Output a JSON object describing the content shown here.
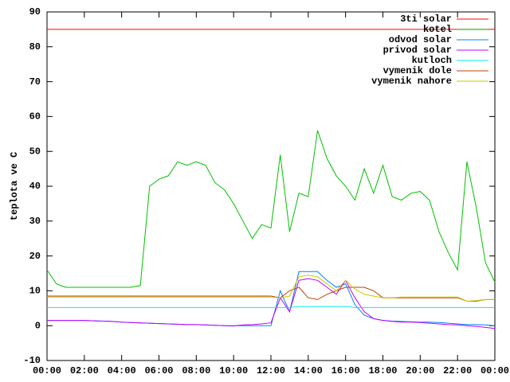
{
  "chart_data": {
    "type": "line",
    "y_label": "teplota ve C",
    "x": [
      0,
      0.5,
      1,
      1.5,
      2,
      2.5,
      3,
      3.5,
      4,
      4.5,
      5,
      5.5,
      6,
      6.5,
      7,
      7.5,
      8,
      8.5,
      9,
      9.5,
      10,
      10.5,
      11,
      11.5,
      12,
      12.5,
      13,
      13.5,
      14,
      14.5,
      15,
      15.5,
      16,
      16.5,
      17,
      17.5,
      18,
      18.5,
      19,
      19.5,
      20,
      20.5,
      21,
      21.5,
      22,
      22.5,
      23,
      23.5,
      24
    ],
    "xlim": [
      0,
      24
    ],
    "xticks": [
      {
        "value": 0,
        "label": "00:00"
      },
      {
        "value": 2,
        "label": "02:00"
      },
      {
        "value": 4,
        "label": "04:00"
      },
      {
        "value": 6,
        "label": "06:00"
      },
      {
        "value": 8,
        "label": "08:00"
      },
      {
        "value": 10,
        "label": "10:00"
      },
      {
        "value": 12,
        "label": "12:00"
      },
      {
        "value": 14,
        "label": "14:00"
      },
      {
        "value": 16,
        "label": "16:00"
      },
      {
        "value": 18,
        "label": "18:00"
      },
      {
        "value": 20,
        "label": "20:00"
      },
      {
        "value": 22,
        "label": "22:00"
      },
      {
        "value": 24,
        "label": "00:00"
      }
    ],
    "ylim": [
      -10,
      90
    ],
    "yticks": [
      -10,
      0,
      10,
      20,
      30,
      40,
      50,
      60,
      70,
      80,
      90
    ],
    "legend": "top-right",
    "series": [
      {
        "name": "3ti solar",
        "color": "#ff0000",
        "values": [
          85,
          85,
          85,
          85,
          85,
          85,
          85,
          85,
          85,
          85,
          85,
          85,
          85,
          85,
          85,
          85,
          85,
          85,
          85,
          85,
          85,
          85,
          85,
          85,
          85,
          85,
          85,
          85,
          85,
          85,
          85,
          85,
          85,
          85,
          85,
          85,
          85,
          85,
          85,
          85,
          85,
          85,
          85,
          85,
          85,
          85,
          85,
          85,
          85
        ]
      },
      {
        "name": "kotel",
        "color": "#00c000",
        "values": [
          16,
          12,
          11,
          11,
          11,
          11,
          11,
          11,
          11,
          11,
          11.5,
          40,
          42,
          43,
          47,
          46,
          47,
          46,
          41,
          39,
          35,
          30,
          25,
          29,
          28,
          49,
          27,
          38,
          37,
          56,
          48,
          43,
          40,
          36,
          45,
          38,
          46,
          37,
          36,
          38,
          38.5,
          36,
          27,
          21,
          16,
          47,
          34,
          18,
          12.5
        ]
      },
      {
        "name": "odvod solar",
        "color": "#0080ff",
        "values": [
          1.5,
          1.5,
          1.5,
          1.5,
          1.5,
          1.4,
          1.3,
          1.2,
          1.0,
          0.9,
          0.8,
          0.7,
          0.6,
          0.5,
          0.4,
          0.3,
          0.3,
          0.2,
          0.1,
          0,
          0,
          0,
          0,
          0,
          0,
          10,
          4,
          15.5,
          15.5,
          15.5,
          13,
          11,
          12,
          6,
          3,
          2,
          1.5,
          1.3,
          1.2,
          1.1,
          1,
          1,
          0.9,
          0.7,
          0.5,
          0.3,
          0.3,
          0.2,
          0
        ]
      },
      {
        "name": "privod solar",
        "color": "#c000ff",
        "values": [
          1.5,
          1.5,
          1.5,
          1.5,
          1.5,
          1.4,
          1.3,
          1.2,
          1.0,
          0.9,
          0.8,
          0.7,
          0.6,
          0.5,
          0.4,
          0.3,
          0.3,
          0.2,
          0.1,
          0,
          -0.1,
          0.2,
          0.3,
          0.5,
          0.8,
          8,
          4,
          13,
          13.5,
          13,
          11,
          9,
          13,
          8,
          4,
          2,
          1.5,
          1.2,
          1,
          1,
          0.9,
          0.7,
          0.5,
          0.3,
          0.2,
          0,
          -0.2,
          -0.5,
          -0.8
        ]
      },
      {
        "name": "kutloch",
        "color": "#00eeee",
        "values": [
          5.2,
          5.2,
          5.2,
          5.2,
          5.2,
          5.2,
          5.2,
          5.2,
          5.2,
          5.2,
          5.2,
          5.2,
          5.2,
          5.2,
          5.2,
          5.2,
          5.2,
          5.2,
          5.2,
          5.2,
          5.2,
          5.2,
          5.2,
          5.2,
          5.2,
          5.2,
          5.2,
          5.5,
          5.5,
          5.5,
          5.5,
          5.5,
          5.5,
          5.2,
          5.2,
          5.2,
          5.2,
          5.2,
          5.2,
          5.2,
          5.2,
          5.2,
          5.2,
          5.2,
          5.2,
          5.2,
          5.2,
          5.2,
          5.2
        ]
      },
      {
        "name": "vymenik dole",
        "color": "#c04000",
        "values": [
          8.5,
          8.5,
          8.5,
          8.5,
          8.5,
          8.5,
          8.5,
          8.5,
          8.5,
          8.5,
          8.5,
          8.5,
          8.5,
          8.5,
          8.5,
          8.5,
          8.5,
          8.5,
          8.5,
          8.5,
          8.5,
          8.5,
          8.5,
          8.5,
          8.5,
          8,
          10,
          11,
          8,
          7.5,
          9,
          10,
          11,
          11,
          11,
          10,
          8,
          8,
          8,
          8,
          8,
          8,
          8,
          8,
          8,
          7,
          7,
          7.5,
          7.5
        ]
      },
      {
        "name": "vymenik nahore",
        "color": "#c8c800",
        "values": [
          8.2,
          8.2,
          8.2,
          8.2,
          8.2,
          8.2,
          8.2,
          8.2,
          8.2,
          8.2,
          8.2,
          8.2,
          8.2,
          8.2,
          8.2,
          8.2,
          8.2,
          8.2,
          8.2,
          8.2,
          8.2,
          8.2,
          8.2,
          8.2,
          8.2,
          8,
          8.5,
          14,
          14.5,
          14,
          12,
          10,
          13,
          10.5,
          9,
          8.5,
          8,
          8,
          8.2,
          8.2,
          8.2,
          8.2,
          8.2,
          8.2,
          8.2,
          7,
          7.2,
          7.5,
          7.5
        ]
      }
    ]
  }
}
